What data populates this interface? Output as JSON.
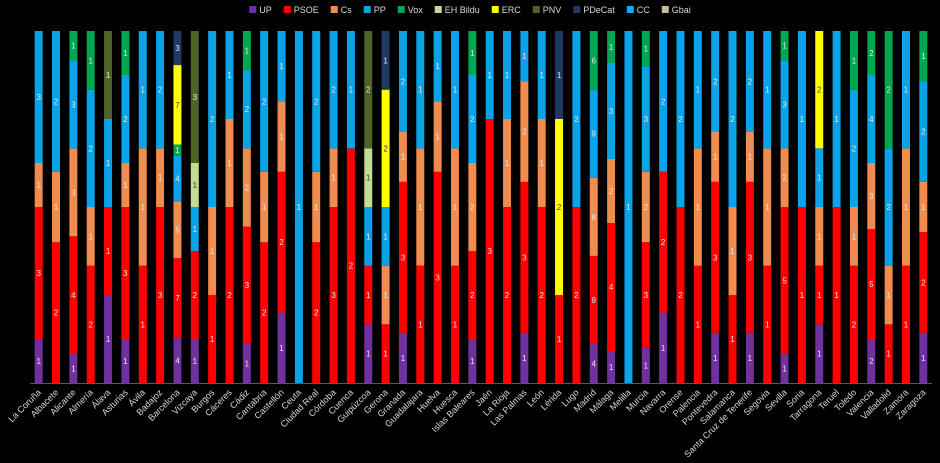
{
  "chart_data": {
    "type": "bar",
    "stacked": true,
    "normalized": true,
    "title": "",
    "xlabel": "",
    "ylabel": "",
    "ylim": [
      0,
      1
    ],
    "grid": false,
    "legend_position": "top",
    "background": "#000000",
    "categories": [
      "La Coruña",
      "Albacete",
      "Alicante",
      "Almería",
      "Álava",
      "Asturias",
      "Ávila",
      "Badajoz",
      "Barcelona",
      "Vizcaya",
      "Burgos",
      "Cáceres",
      "Cádiz",
      "Cantabria",
      "Castellón",
      "Ceuta",
      "Ciudad Real",
      "Córdoba",
      "Cuenca",
      "Guipúzcoa",
      "Gerona",
      "Granada",
      "Guadalajara",
      "Huelva",
      "Huesca",
      "Islas Baleares",
      "Jaén",
      "La Rioja",
      "Las Palmas",
      "León",
      "Lérida",
      "Lugo",
      "Madrid",
      "Málaga",
      "Melilla",
      "Murcia",
      "Navarra",
      "Orense",
      "Palencia",
      "Pontevedra",
      "Salamanca",
      "Santa Cruz de Tenerife",
      "Segovia",
      "Sevilla",
      "Soria",
      "Tarragona",
      "Teruel",
      "Toledo",
      "Valencia",
      "Valladolid",
      "Zamora",
      "Zaragoza"
    ],
    "series": [
      {
        "name": "UP",
        "color": "#7030a0",
        "values": [
          1,
          0,
          1,
          0,
          1,
          1,
          0,
          0,
          4,
          1,
          0,
          0,
          1,
          0,
          1,
          0,
          0,
          0,
          0,
          1,
          0,
          1,
          0,
          0,
          0,
          1,
          0,
          0,
          1,
          0,
          0,
          0,
          4,
          1,
          0,
          1,
          1,
          0,
          0,
          1,
          0,
          1,
          0,
          1,
          0,
          1,
          0,
          0,
          2,
          0,
          0,
          1
        ]
      },
      {
        "name": "PSOE",
        "color": "#ff0000",
        "values": [
          3,
          2,
          4,
          2,
          1,
          3,
          1,
          3,
          7,
          2,
          1,
          2,
          3,
          2,
          2,
          0,
          2,
          3,
          2,
          1,
          1,
          3,
          1,
          3,
          1,
          2,
          3,
          2,
          3,
          2,
          1,
          2,
          9,
          4,
          0,
          3,
          2,
          2,
          1,
          3,
          1,
          3,
          1,
          5,
          1,
          1,
          1,
          2,
          5,
          1,
          1,
          2
        ]
      },
      {
        "name": "Cs",
        "color": "#f08c4e",
        "values": [
          1,
          1,
          3,
          1,
          0,
          1,
          1,
          1,
          5,
          0,
          1,
          1,
          2,
          1,
          1,
          0,
          1,
          1,
          0,
          0,
          1,
          1,
          1,
          1,
          1,
          2,
          0,
          1,
          2,
          1,
          0,
          0,
          8,
          2,
          0,
          2,
          0,
          0,
          1,
          1,
          1,
          1,
          1,
          2,
          0,
          1,
          0,
          1,
          3,
          1,
          1,
          1
        ]
      },
      {
        "name": "PP",
        "color": "#0ba3e8",
        "values": [
          3,
          2,
          3,
          2,
          1,
          2,
          1,
          2,
          4,
          1,
          2,
          1,
          2,
          2,
          1,
          1,
          2,
          2,
          1,
          1,
          1,
          2,
          1,
          1,
          1,
          2,
          1,
          1,
          1,
          1,
          0,
          2,
          9,
          3,
          1,
          3,
          2,
          2,
          1,
          2,
          2,
          2,
          1,
          3,
          1,
          1,
          1,
          2,
          4,
          2,
          1,
          2
        ]
      },
      {
        "name": "Vox",
        "color": "#00a650",
        "values": [
          0,
          0,
          1,
          1,
          0,
          1,
          0,
          0,
          1,
          0,
          0,
          0,
          1,
          0,
          0,
          0,
          0,
          0,
          0,
          0,
          0,
          0,
          0,
          0,
          0,
          1,
          0,
          0,
          0,
          0,
          0,
          0,
          6,
          1,
          0,
          1,
          0,
          0,
          0,
          0,
          0,
          0,
          0,
          1,
          0,
          0,
          0,
          1,
          2,
          2,
          0,
          1
        ]
      },
      {
        "name": "EH Bildu",
        "color": "#c4dc91",
        "values": [
          0,
          0,
          0,
          0,
          0,
          0,
          0,
          0,
          0,
          1,
          0,
          0,
          0,
          0,
          0,
          0,
          0,
          0,
          0,
          1,
          0,
          0,
          0,
          0,
          0,
          0,
          0,
          0,
          0,
          0,
          0,
          0,
          0,
          0,
          0,
          0,
          0,
          0,
          0,
          0,
          0,
          0,
          0,
          0,
          0,
          0,
          0,
          0,
          0,
          0,
          0,
          0
        ]
      },
      {
        "name": "ERC",
        "color": "#ffff00",
        "values": [
          0,
          0,
          0,
          0,
          0,
          0,
          0,
          0,
          7,
          0,
          0,
          0,
          0,
          0,
          0,
          0,
          0,
          0,
          0,
          0,
          2,
          0,
          0,
          0,
          0,
          0,
          0,
          0,
          0,
          0,
          2,
          0,
          0,
          0,
          0,
          0,
          0,
          0,
          0,
          0,
          0,
          0,
          0,
          0,
          0,
          2,
          0,
          0,
          0,
          0,
          0,
          0
        ]
      },
      {
        "name": "PNV",
        "color": "#4f6228",
        "values": [
          0,
          0,
          0,
          0,
          1,
          0,
          0,
          0,
          0,
          3,
          0,
          0,
          0,
          0,
          0,
          0,
          0,
          0,
          0,
          2,
          0,
          0,
          0,
          0,
          0,
          0,
          0,
          0,
          0,
          0,
          0,
          0,
          0,
          0,
          0,
          0,
          0,
          0,
          0,
          0,
          0,
          0,
          0,
          0,
          0,
          0,
          0,
          0,
          0,
          0,
          0,
          0
        ]
      },
      {
        "name": "PDeCat",
        "color": "#1f3864",
        "values": [
          0,
          0,
          0,
          0,
          0,
          0,
          0,
          0,
          3,
          0,
          0,
          0,
          0,
          0,
          0,
          0,
          0,
          0,
          0,
          0,
          1,
          0,
          0,
          0,
          0,
          0,
          0,
          0,
          0,
          0,
          1,
          0,
          0,
          0,
          0,
          0,
          0,
          0,
          0,
          0,
          0,
          0,
          0,
          0,
          0,
          0,
          0,
          0,
          0,
          0,
          0,
          0
        ]
      },
      {
        "name": "CC",
        "color": "#00b0f0",
        "values": [
          0,
          0,
          0,
          0,
          0,
          0,
          0,
          0,
          0,
          0,
          0,
          0,
          0,
          0,
          0,
          0,
          0,
          0,
          0,
          0,
          0,
          0,
          0,
          0,
          0,
          0,
          0,
          0,
          0,
          0,
          0,
          0,
          0,
          0,
          0,
          0,
          0,
          0,
          0,
          0,
          0,
          0,
          0,
          0,
          0,
          0,
          0,
          0,
          0,
          0,
          0,
          0
        ]
      },
      {
        "name": "Gbai",
        "color": "#c4bd97",
        "values": [
          0,
          0,
          0,
          0,
          0,
          0,
          0,
          0,
          0,
          0,
          0,
          0,
          0,
          0,
          0,
          0,
          0,
          0,
          0,
          0,
          0,
          0,
          0,
          0,
          0,
          0,
          0,
          0,
          0,
          0,
          0,
          0,
          0,
          0,
          0,
          0,
          0,
          0,
          0,
          0,
          0,
          0,
          0,
          0,
          0,
          0,
          0,
          0,
          0,
          0,
          0,
          0
        ]
      }
    ]
  }
}
